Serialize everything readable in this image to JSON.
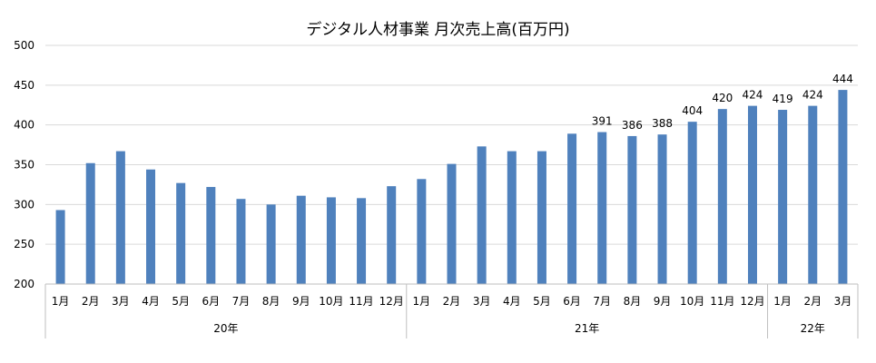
{
  "chart_data": {
    "type": "bar",
    "title": "デジタル人材事業 月次売上高(百万円)",
    "month_labels": [
      "1月",
      "2月",
      "3月",
      "4月",
      "5月",
      "6月",
      "7月",
      "8月",
      "9月",
      "10月",
      "11月",
      "12月",
      "1月",
      "2月",
      "3月",
      "4月",
      "5月",
      "6月",
      "7月",
      "8月",
      "9月",
      "10月",
      "11月",
      "12月",
      "1月",
      "2月",
      "3月"
    ],
    "year_groups": [
      {
        "label": "20年",
        "count": 12
      },
      {
        "label": "21年",
        "count": 12
      },
      {
        "label": "22年",
        "count": 3
      }
    ],
    "values": [
      293,
      352,
      367,
      344,
      327,
      322,
      307,
      300,
      311,
      309,
      308,
      323,
      332,
      351,
      373,
      367,
      367,
      389,
      391,
      386,
      388,
      404,
      420,
      424,
      419,
      424,
      444
    ],
    "data_labels": {
      "18": "391",
      "19": "386",
      "20": "388",
      "21": "404",
      "22": "420",
      "23": "424",
      "24": "419",
      "25": "424",
      "26": "444"
    },
    "y_ticks": [
      "200",
      "250",
      "300",
      "350",
      "400",
      "450",
      "500"
    ],
    "ylim": [
      200,
      500
    ],
    "grid": true,
    "bar_color": "#4f81bd"
  }
}
